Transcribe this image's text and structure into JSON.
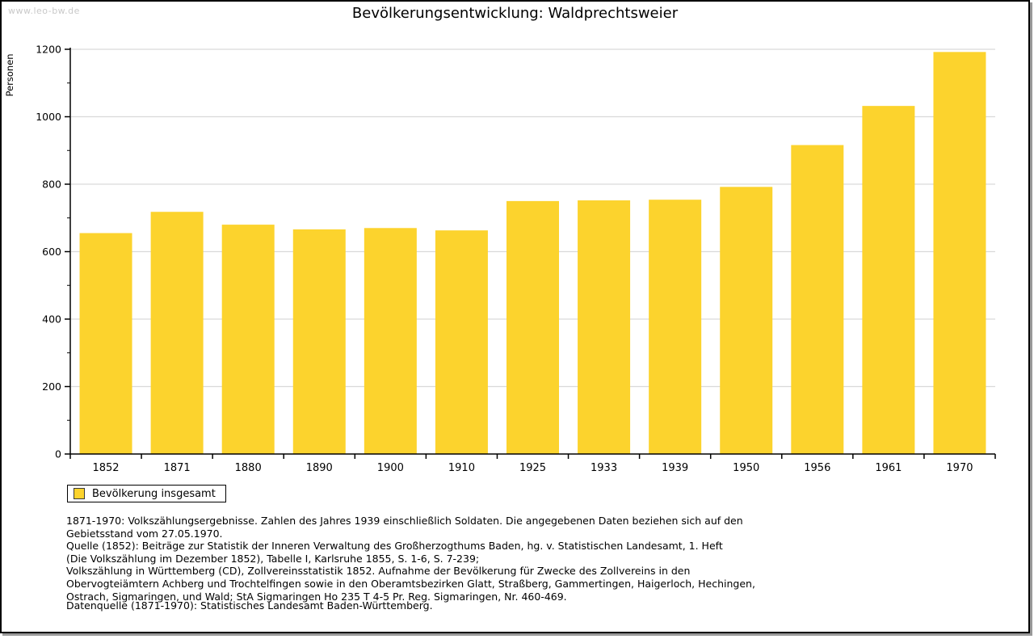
{
  "watermark": "www.leo-bw.de",
  "title": "Bevölkerungsentwicklung: Waldprechtsweier",
  "chart_data": {
    "type": "bar",
    "title": "Bevölkerungsentwicklung: Waldprechtsweier",
    "xlabel": "",
    "ylabel": "Personen",
    "categories": [
      "1852",
      "1871",
      "1880",
      "1890",
      "1900",
      "1910",
      "1925",
      "1933",
      "1939",
      "1950",
      "1956",
      "1961",
      "1970"
    ],
    "values": [
      655,
      718,
      680,
      666,
      670,
      663,
      750,
      752,
      754,
      792,
      916,
      1032,
      1192
    ],
    "ylim": [
      0,
      1200
    ],
    "ytick_step": 200,
    "yminor_tick_step": 100,
    "grid": true,
    "legend_position": "bottom-left",
    "legend_label": "Bevölkerung insgesamt",
    "bar_color": "#fcd32d",
    "gridline_color": "#d9d9d9",
    "axis_color": "#000000"
  },
  "legend": {
    "label": "Bevölkerung insgesamt"
  },
  "footnotes": [
    "1871-1970: Volkszählungsergebnisse. Zahlen des Jahres 1939 einschließlich Soldaten. Die angegebenen Daten beziehen sich auf den",
    "Gebietsstand vom 27.05.1970.",
    "Quelle (1852): Beiträge zur Statistik der Inneren Verwaltung des Großherzogthums Baden, hg. v. Statistischen Landesamt, 1. Heft",
    "(Die Volkszählung im Dezember 1852), Tabelle I, Karlsruhe 1855, S. 1-6, S. 7-239;",
    "Volkszählung in Württemberg (CD), Zollvereinsstatistik 1852. Aufnahme der Bevölkerung für Zwecke des Zollvereins in den",
    "Obervogteiämtern Achberg und Trochtelfingen sowie in den Oberamtsbezirken Glatt, Straßberg, Gammertingen, Haigerloch, Hechingen,",
    "Ostrach, Sigmaringen, und Wald; StA Sigmaringen Ho 235 T 4-5 Pr. Reg. Sigmaringen, Nr. 460-469."
  ],
  "datasource": "Datenquelle (1871-1970): Statistisches Landesamt Baden-Württemberg."
}
